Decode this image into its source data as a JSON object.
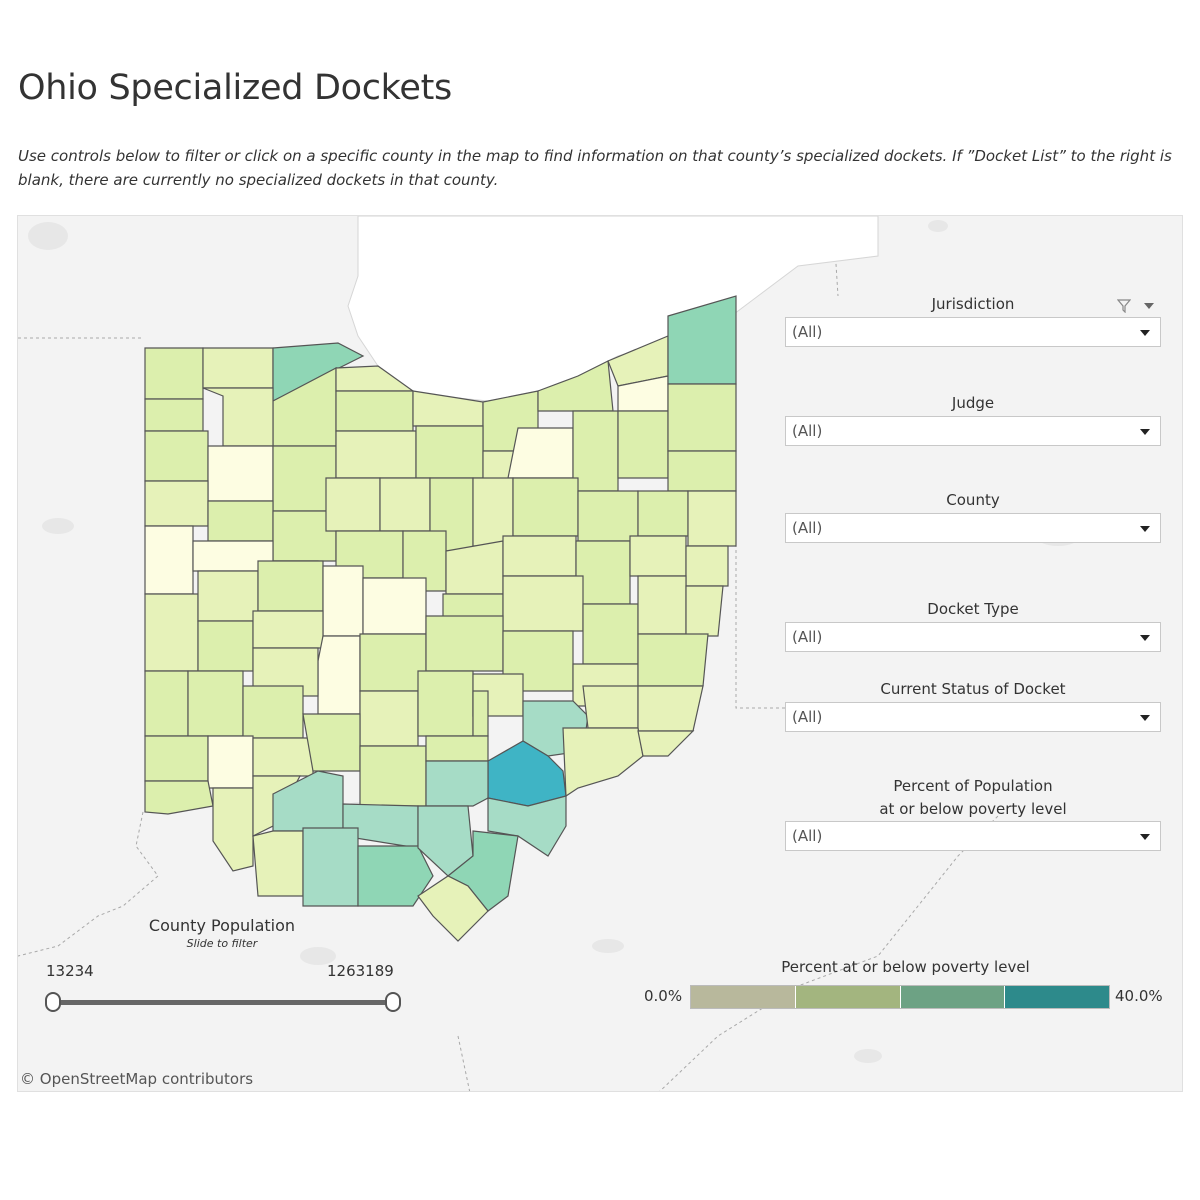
{
  "page": {
    "title": "Ohio Specialized Dockets",
    "subtitle": "Use controls below to filter or click on a specific county in the map to find information on that county’s specialized dockets. If ”Docket List” to the right is blank, there are currently no specialized dockets in that county."
  },
  "filters": {
    "jurisdiction": {
      "label": "Jurisdiction",
      "value": "(All)"
    },
    "judge": {
      "label": "Judge",
      "value": "(All)"
    },
    "county": {
      "label": "County",
      "value": "(All)"
    },
    "docket_type": {
      "label": "Docket Type",
      "value": "(All)"
    },
    "current_status": {
      "label": "Current  Status of Docket",
      "value": "(All)"
    },
    "poverty_pct": {
      "label_line1": "Percent of Population",
      "label_line2": "at or below poverty level",
      "value": "(All)"
    }
  },
  "population_slider": {
    "label": "County Population",
    "hint": "Slide to filter",
    "min": "13234",
    "max": "1263189",
    "selected_low": 13234,
    "selected_high": 1263189
  },
  "legend": {
    "title": "Percent at or below poverty level",
    "min_label": "0.0%",
    "max_label": "40.0%",
    "colors": [
      "#b8b89c",
      "#a3b57f",
      "#6da284",
      "#2d8a8b"
    ]
  },
  "attribution": "© OpenStreetMap contributors",
  "icons": {
    "filter": "funnel-icon",
    "menu": "caret-down-icon",
    "dropdown": "caret-down-icon"
  },
  "colors": {
    "background": "#f3f3f3",
    "lake": "#ffffff",
    "county_border": "#555555",
    "light_yellow": "#fdfde2",
    "light_green": "#e6f2b9",
    "green": "#dcefad",
    "teal_light": "#a6dcc6",
    "teal": "#8fd6b5",
    "teal_dark": "#3fb4c5"
  }
}
